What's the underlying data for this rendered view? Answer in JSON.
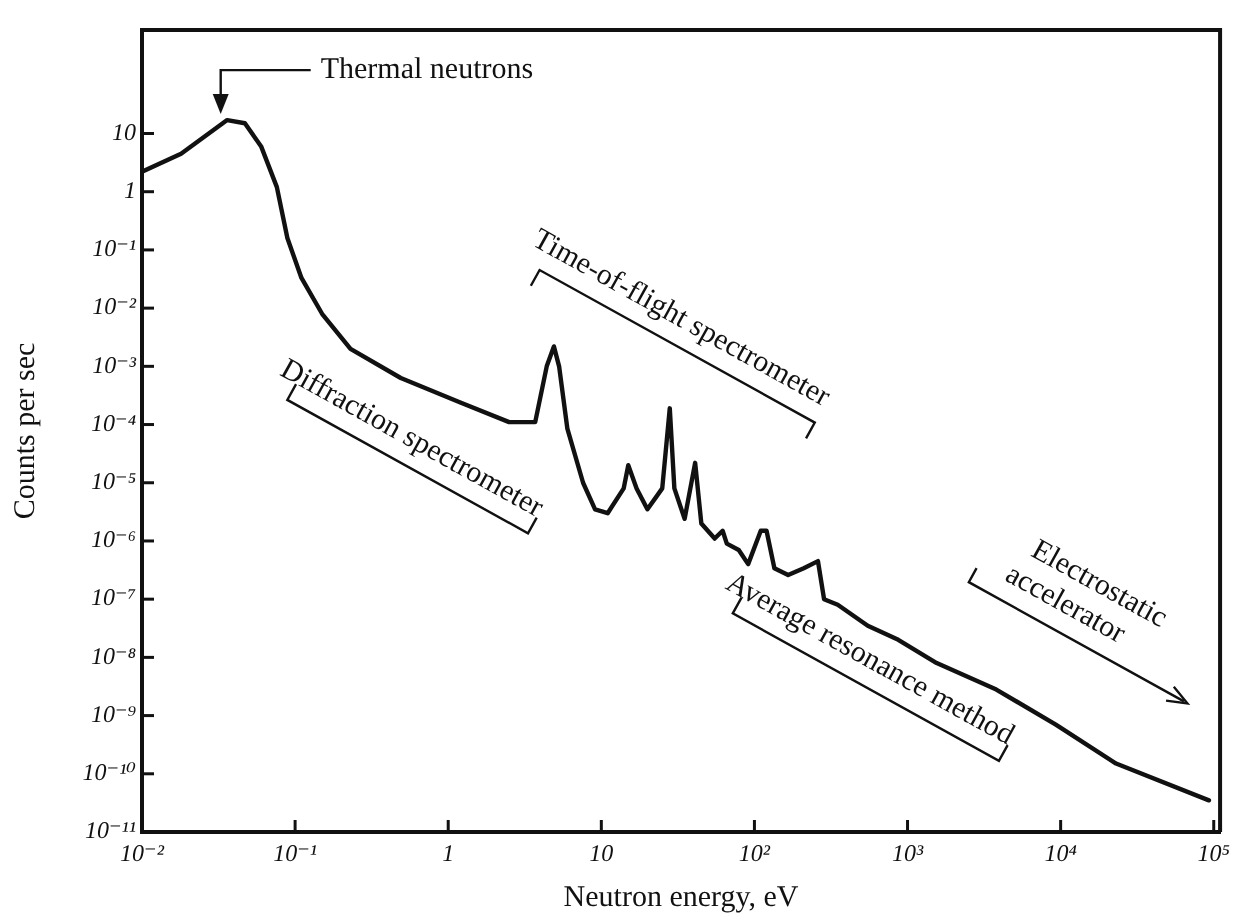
{
  "chart_data": {
    "type": "line",
    "xlabel": "Neutron energy, eV",
    "ylabel": "Counts per sec",
    "log": "xy",
    "grid": false,
    "legend": false,
    "marker": "none",
    "line_style": "solid",
    "xlim": [
      0.01,
      110000
    ],
    "ylim": [
      1e-11,
      600
    ],
    "xticks": [
      {
        "value": 0.01,
        "label": "10⁻²"
      },
      {
        "value": 0.1,
        "label": "10⁻¹"
      },
      1,
      10,
      {
        "value": 100,
        "label": "10²"
      },
      {
        "value": 1000,
        "label": "10³"
      },
      {
        "value": 10000,
        "label": "10⁴"
      },
      {
        "value": 100000,
        "label": "10⁵"
      }
    ],
    "yticks": [
      {
        "value": 1e-11,
        "label": "10⁻¹¹"
      },
      {
        "value": 1e-10,
        "label": "10⁻¹⁰"
      },
      {
        "value": 1e-09,
        "label": "10⁻⁹"
      },
      {
        "value": 1e-08,
        "label": "10⁻⁸"
      },
      {
        "value": 1e-07,
        "label": "10⁻⁷"
      },
      {
        "value": 1e-06,
        "label": "10⁻⁶"
      },
      {
        "value": 1e-05,
        "label": "10⁻⁵"
      },
      {
        "value": 0.0001,
        "label": "10⁻⁴"
      },
      {
        "value": 0.001,
        "label": "10⁻³"
      },
      {
        "value": 0.01,
        "label": "10⁻²"
      },
      {
        "value": 0.1,
        "label": "10⁻¹"
      },
      1,
      10
    ],
    "series": [
      {
        "color": "#111111",
        "x": [
          0.01,
          0.018,
          0.036,
          0.047,
          0.06,
          0.076,
          0.089,
          0.11,
          0.15,
          0.23,
          0.49,
          1.2,
          2.5,
          3.7,
          4.4,
          4.9,
          5.3,
          6,
          7.6,
          9.1,
          11,
          14,
          15,
          17,
          20,
          25,
          28,
          30,
          35,
          41,
          45,
          55,
          62,
          66,
          79,
          91,
          110,
          120,
          135,
          166,
          210,
          260,
          285,
          350,
          550,
          870,
          1550,
          3800,
          9300,
          23000,
          93000
        ],
        "values": [
          2.2,
          4.5,
          17,
          15,
          6,
          1.2,
          0.16,
          0.033,
          0.008,
          0.002,
          0.00063,
          0.00024,
          0.00011,
          0.00011,
          0.001,
          0.0022,
          0.001,
          8.5e-05,
          1e-05,
          3.5e-06,
          3e-06,
          8e-06,
          2e-05,
          8e-06,
          3.5e-06,
          8e-06,
          0.00019,
          8e-06,
          2.4e-06,
          2.2e-05,
          2e-06,
          1.1e-06,
          1.5e-06,
          9e-07,
          7e-07,
          4e-07,
          1.5e-06,
          1.5e-06,
          3.4e-07,
          2.6e-07,
          3.4e-07,
          4.5e-07,
          1e-07,
          8e-08,
          3.5e-08,
          2e-08,
          8e-09,
          2.8e-09,
          7e-10,
          1.5e-10,
          3.5e-11
        ]
      }
    ],
    "annotations": [
      "Thermal neutrons",
      "Time-of-flight spectrometer",
      "Diffraction spectrometer",
      "Average resonance method",
      "Electrostatic accelerator"
    ]
  }
}
